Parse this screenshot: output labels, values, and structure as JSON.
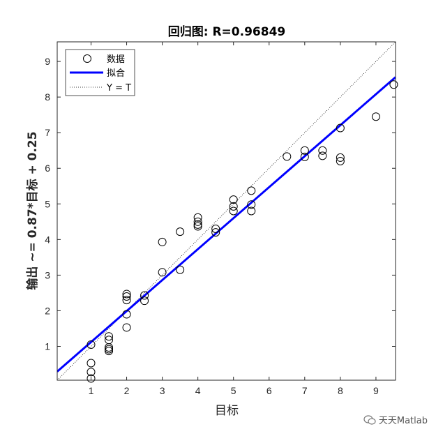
{
  "chart_data": {
    "type": "scatter",
    "title": "回归图: R=0.96849",
    "xlabel": "目标",
    "ylabel": "输出 ~= 0.87*目标 + 0.25",
    "xlim": [
      0.05,
      9.55
    ],
    "ylim": [
      0.05,
      9.55
    ],
    "xticks": [
      1,
      2,
      3,
      4,
      5,
      6,
      7,
      8,
      9
    ],
    "yticks": [
      1,
      2,
      3,
      4,
      5,
      6,
      7,
      8,
      9
    ],
    "grid": false,
    "legend_position": "top-left",
    "series": [
      {
        "name": "数据",
        "marker": "circle",
        "x": [
          1,
          1,
          1,
          1,
          1.5,
          1.5,
          1.5,
          1.5,
          1.5,
          2,
          2,
          2,
          2,
          2,
          2.5,
          2.5,
          3,
          3,
          3.5,
          3.5,
          4,
          4,
          4,
          4,
          4.5,
          4.5,
          5,
          5,
          5,
          5.5,
          5.5,
          5.5,
          6.5,
          7,
          7,
          7.5,
          7.5,
          8,
          8,
          8,
          9,
          9.5
        ],
        "y": [
          1.05,
          0.53,
          0.28,
          0.1,
          1.28,
          1.18,
          0.97,
          0.92,
          0.87,
          2.47,
          2.4,
          2.3,
          1.9,
          1.53,
          2.43,
          2.28,
          3.93,
          3.08,
          4.22,
          3.15,
          4.62,
          4.5,
          4.42,
          4.37,
          4.3,
          4.2,
          5.12,
          4.93,
          4.8,
          5.37,
          4.98,
          4.8,
          6.33,
          6.5,
          6.32,
          6.5,
          6.35,
          7.13,
          6.3,
          6.2,
          7.45,
          8.35
        ]
      },
      {
        "name": "拟合",
        "type": "line",
        "slope": 0.87,
        "intercept": 0.25,
        "color": "#0000ff"
      },
      {
        "name": "Y = T",
        "type": "line",
        "slope": 1,
        "intercept": 0,
        "style": "dotted",
        "color": "#000000"
      }
    ]
  },
  "watermark": {
    "text": "天天Matlab",
    "icon": "wechat-icon"
  }
}
